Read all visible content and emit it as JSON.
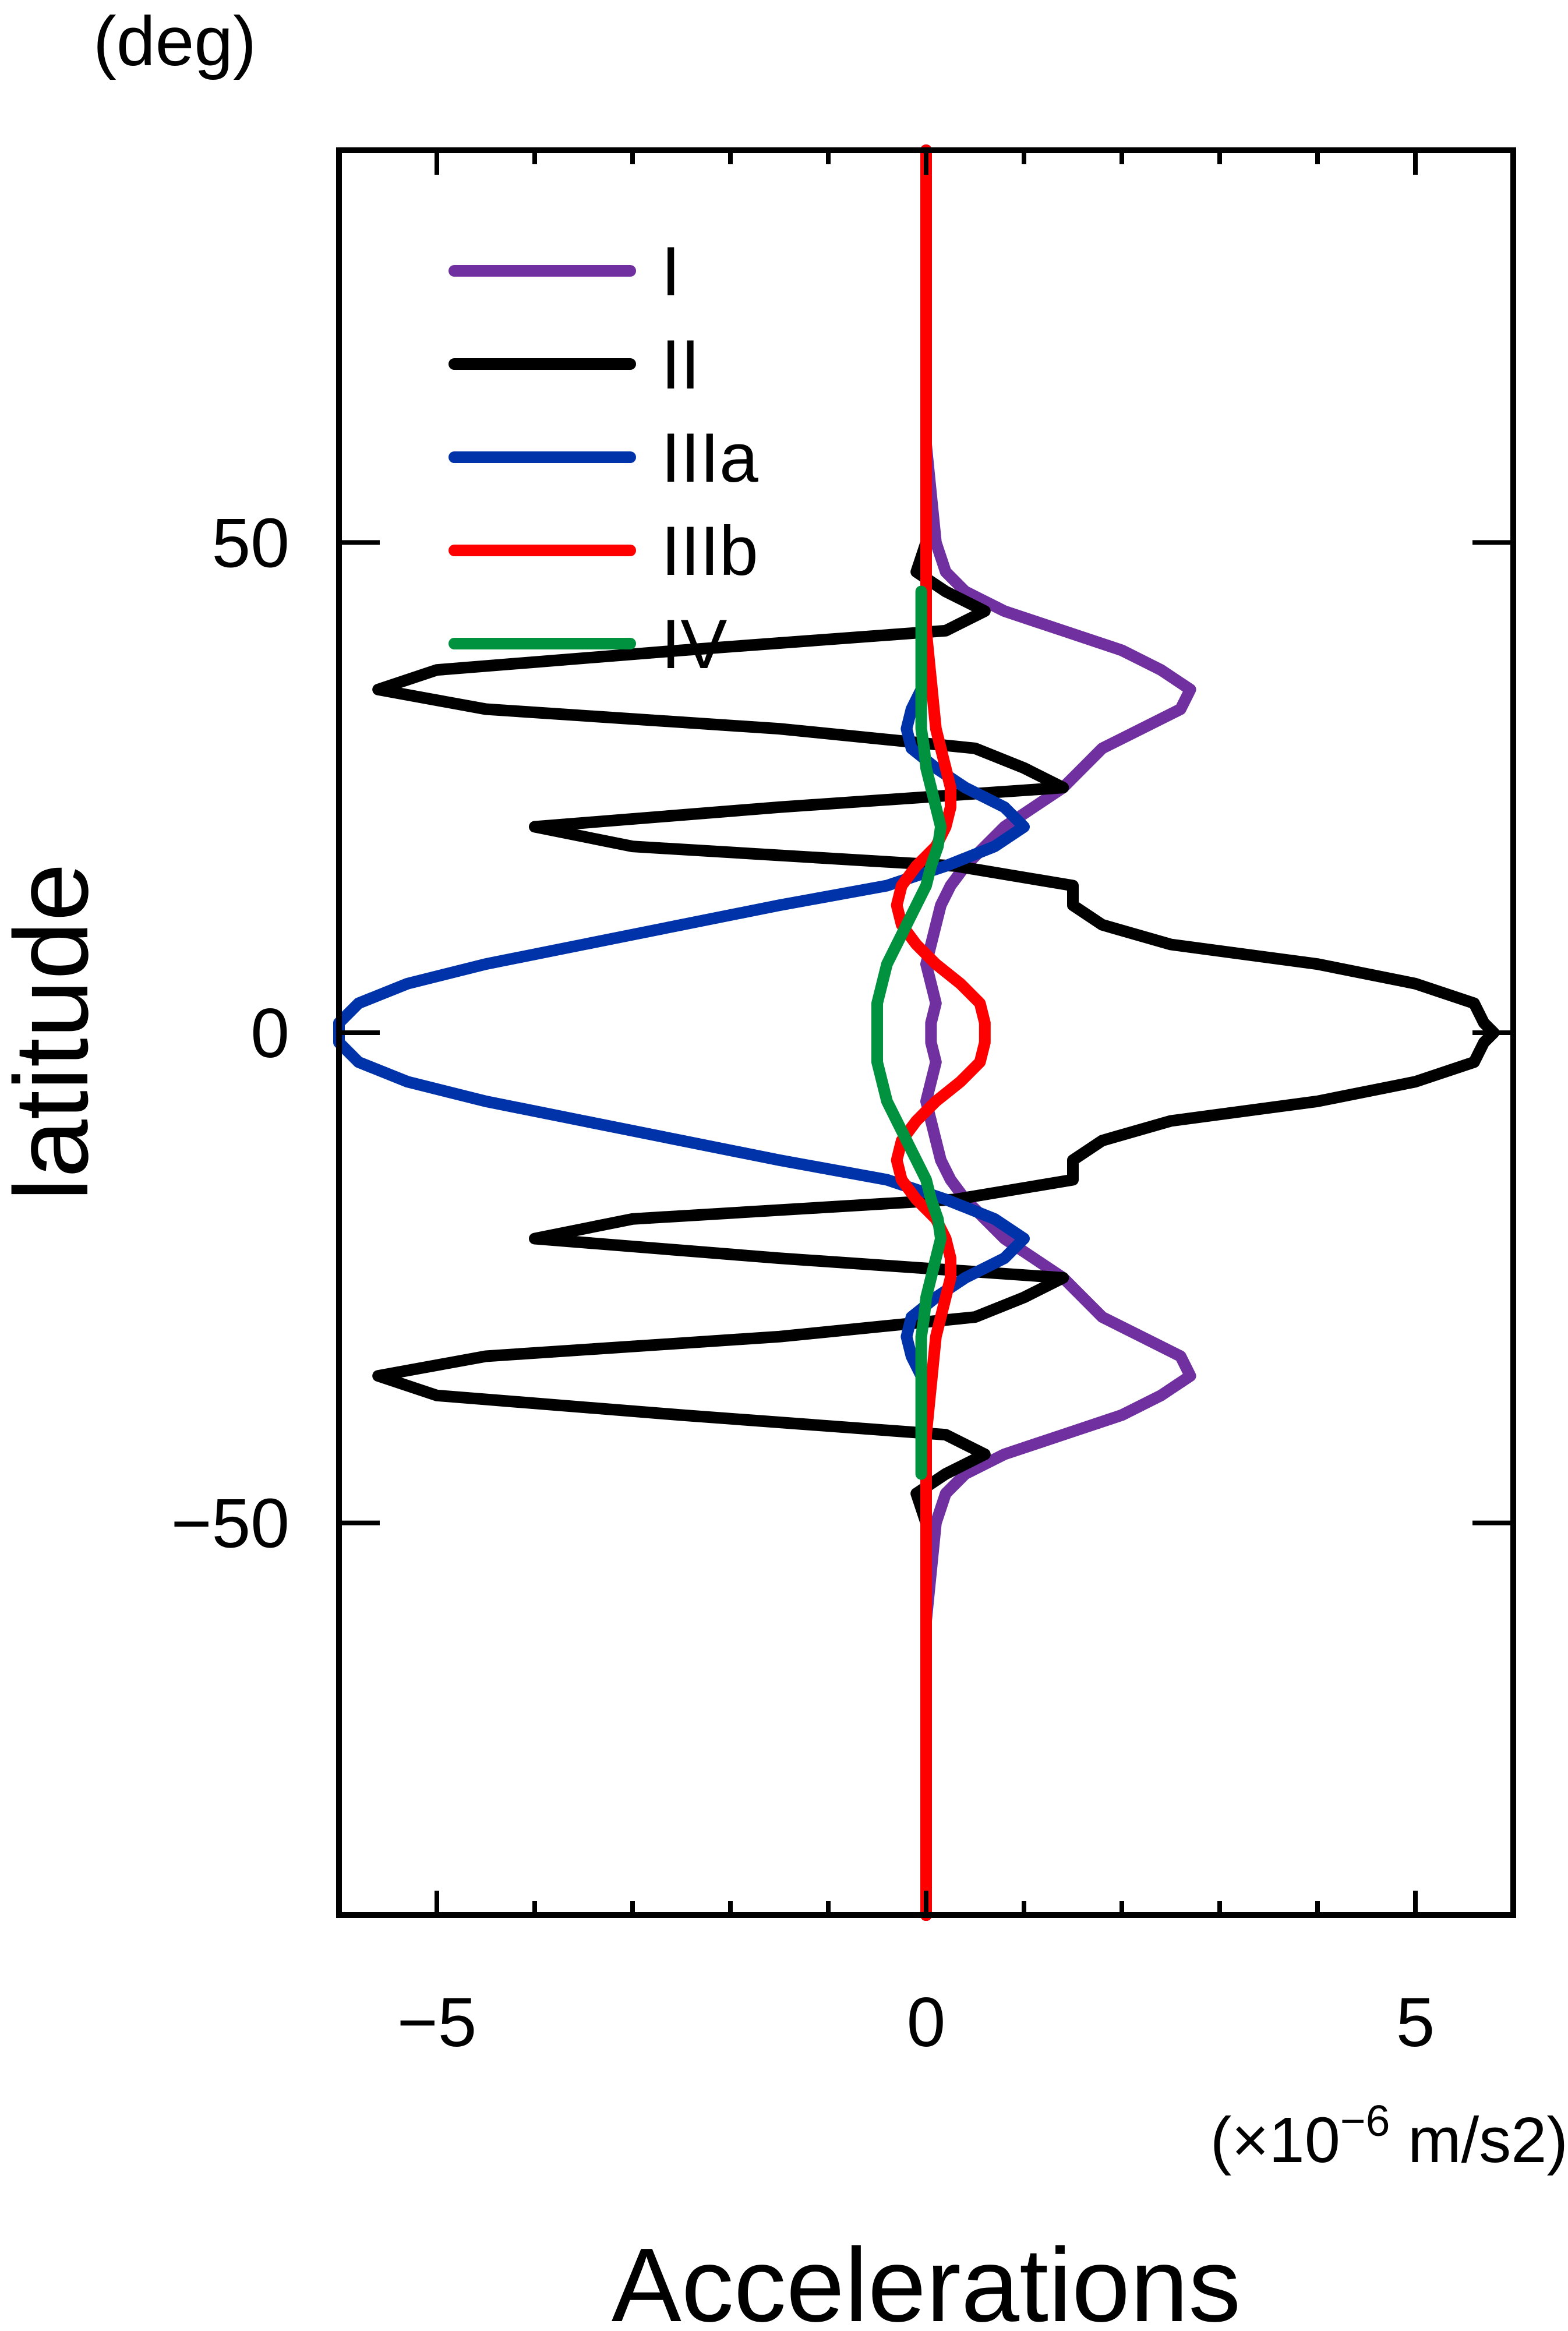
{
  "chart_data": {
    "type": "line",
    "orientation": "vertical-latitude",
    "title": "",
    "xlabel": "Accelerations",
    "x_unit": "(×10",
    "x_unit_exp": "−6",
    "x_unit_tail": " m/s2)",
    "ylabel": "latitude",
    "y_unit": "(deg)",
    "xlim": [
      -6,
      6
    ],
    "ylim": [
      -90,
      90
    ],
    "x_ticks": [
      -5,
      0,
      5
    ],
    "x_tick_labels": [
      "−5",
      "0",
      "5"
    ],
    "y_ticks": [
      -50,
      0,
      50
    ],
    "y_tick_labels": [
      "−50",
      "0",
      "50"
    ],
    "grid": false,
    "legend_position": "top-left",
    "latitudes": [
      -90,
      -60,
      -55,
      -50,
      -47,
      -45,
      -43,
      -41,
      -39,
      -37,
      -35,
      -33,
      -31,
      -29,
      -27,
      -25,
      -23,
      -21,
      -19,
      -17,
      -15,
      -13,
      -11,
      -9,
      -7,
      -5,
      -3,
      -1,
      0,
      1,
      3,
      5,
      7,
      9,
      11,
      13,
      15,
      17,
      19,
      21,
      23,
      25,
      27,
      29,
      31,
      33,
      35,
      37,
      39,
      41,
      43,
      45,
      47,
      50,
      55,
      60,
      90
    ],
    "series": [
      {
        "name": "I",
        "color": "#7030A0",
        "values": [
          0,
          0,
          0.05,
          0.1,
          0.2,
          0.4,
          0.8,
          1.4,
          2.0,
          2.4,
          2.7,
          2.6,
          2.2,
          1.8,
          1.6,
          1.4,
          1.1,
          0.8,
          0.6,
          0.4,
          0.25,
          0.15,
          0.1,
          0.05,
          0,
          0.05,
          0.1,
          0.05,
          0.05,
          0.05,
          0.1,
          0.05,
          0,
          0.05,
          0.1,
          0.15,
          0.25,
          0.4,
          0.6,
          0.8,
          1.1,
          1.4,
          1.6,
          1.8,
          2.2,
          2.6,
          2.7,
          2.4,
          2.0,
          1.4,
          0.8,
          0.4,
          0.2,
          0.1,
          0.05,
          0,
          0
        ]
      },
      {
        "name": "II",
        "color": "#000000",
        "values": [
          0,
          0,
          0,
          0,
          -0.1,
          0.2,
          0.6,
          0.2,
          -2.5,
          -5.0,
          -5.6,
          -4.5,
          -1.5,
          0.5,
          1.0,
          1.4,
          -1.5,
          -4.0,
          -3.0,
          0.3,
          1.5,
          1.5,
          1.8,
          2.5,
          4.0,
          5.0,
          5.6,
          5.7,
          5.8,
          5.7,
          5.6,
          5.0,
          4.0,
          2.5,
          1.8,
          1.5,
          1.5,
          0.3,
          -3.0,
          -4.0,
          -1.5,
          1.4,
          1.0,
          0.5,
          -1.5,
          -4.5,
          -5.6,
          -5.0,
          -2.5,
          0.2,
          0.6,
          0.2,
          -0.1,
          0,
          0,
          0,
          0
        ]
      },
      {
        "name": "IIIa",
        "color": "#0033AA",
        "values": [
          0,
          0,
          0,
          0,
          0,
          0,
          0,
          0,
          0,
          0,
          -0.05,
          -0.15,
          -0.2,
          -0.15,
          0.1,
          0.4,
          0.8,
          1.0,
          0.7,
          0.2,
          -0.4,
          -1.5,
          -2.5,
          -3.5,
          -4.5,
          -5.3,
          -5.8,
          -6.0,
          -6.0,
          -6.0,
          -5.8,
          -5.3,
          -4.5,
          -3.5,
          -2.5,
          -1.5,
          -0.4,
          0.2,
          0.7,
          1.0,
          0.8,
          0.4,
          0.1,
          -0.15,
          -0.2,
          -0.15,
          -0.05,
          0,
          0,
          0,
          0,
          0,
          0,
          0,
          0,
          0,
          0
        ]
      },
      {
        "name": "IIIb",
        "color": "#FF0000",
        "values": [
          0,
          0,
          0,
          0,
          0,
          0,
          0,
          0,
          0.02,
          0.04,
          0.06,
          0.08,
          0.1,
          0.15,
          0.2,
          0.25,
          0.25,
          0.2,
          0.1,
          -0.1,
          -0.25,
          -0.3,
          -0.25,
          -0.1,
          0.1,
          0.35,
          0.55,
          0.6,
          0.6,
          0.6,
          0.55,
          0.35,
          0.1,
          -0.1,
          -0.25,
          -0.3,
          -0.25,
          -0.1,
          0.1,
          0.2,
          0.25,
          0.25,
          0.2,
          0.15,
          0.1,
          0.08,
          0.06,
          0.04,
          0.02,
          0,
          0,
          0,
          0,
          0,
          0,
          0,
          0
        ]
      },
      {
        "name": "IV",
        "color": "#00923F",
        "values": [
          null,
          null,
          null,
          null,
          null,
          -0.05,
          -0.05,
          -0.05,
          -0.05,
          -0.05,
          -0.05,
          -0.05,
          -0.05,
          -0.02,
          0,
          0.05,
          0.1,
          0.15,
          0.12,
          0.05,
          0,
          -0.1,
          -0.2,
          -0.3,
          -0.4,
          -0.45,
          -0.5,
          -0.5,
          -0.5,
          -0.5,
          -0.5,
          -0.45,
          -0.4,
          -0.3,
          -0.2,
          -0.1,
          0,
          0.05,
          0.12,
          0.15,
          0.1,
          0.05,
          0,
          -0.02,
          -0.05,
          -0.05,
          -0.05,
          -0.05,
          -0.05,
          -0.05,
          -0.05,
          -0.05,
          null,
          null,
          null,
          null,
          null
        ]
      }
    ]
  }
}
